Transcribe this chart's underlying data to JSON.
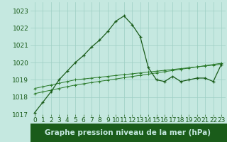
{
  "x": [
    0,
    1,
    2,
    3,
    4,
    5,
    6,
    7,
    8,
    9,
    10,
    11,
    12,
    13,
    14,
    15,
    16,
    17,
    18,
    19,
    20,
    21,
    22,
    23
  ],
  "pressure": [
    1017.1,
    1017.7,
    1018.3,
    1019.0,
    1019.5,
    1020.0,
    1020.4,
    1020.9,
    1021.3,
    1021.8,
    1022.4,
    1022.7,
    1022.2,
    1021.5,
    1019.7,
    1019.0,
    1018.9,
    1019.2,
    1018.9,
    1019.0,
    1019.1,
    1019.1,
    1018.9,
    1019.9
  ],
  "line2": [
    1018.5,
    1018.6,
    1018.7,
    1018.8,
    1018.9,
    1019.0,
    1019.05,
    1019.1,
    1019.15,
    1019.2,
    1019.25,
    1019.3,
    1019.35,
    1019.4,
    1019.45,
    1019.5,
    1019.55,
    1019.6,
    1019.65,
    1019.7,
    1019.75,
    1019.8,
    1019.85,
    1019.9
  ],
  "line3": [
    1018.2,
    1018.3,
    1018.4,
    1018.5,
    1018.6,
    1018.7,
    1018.77,
    1018.84,
    1018.91,
    1018.98,
    1019.05,
    1019.12,
    1019.19,
    1019.26,
    1019.33,
    1019.4,
    1019.47,
    1019.54,
    1019.61,
    1019.68,
    1019.75,
    1019.82,
    1019.89,
    1019.96
  ],
  "ylim": [
    1017.0,
    1023.5
  ],
  "yticks": [
    1017,
    1018,
    1019,
    1020,
    1021,
    1022,
    1023
  ],
  "xticks": [
    0,
    1,
    2,
    3,
    4,
    5,
    6,
    7,
    8,
    9,
    10,
    11,
    12,
    13,
    14,
    15,
    16,
    17,
    18,
    19,
    20,
    21,
    22,
    23
  ],
  "xlabel": "Graphe pression niveau de la mer (hPa)",
  "bg_color": "#c5e8e0",
  "grid_color": "#9ecfc4",
  "line_color": "#1a5c1a",
  "line_color2": "#2a7a2a",
  "xlabel_bg": "#1a5c1a",
  "xlabel_fg": "#c5e8e0",
  "tick_fontsize": 6.5,
  "xlabel_fontsize": 7.5
}
